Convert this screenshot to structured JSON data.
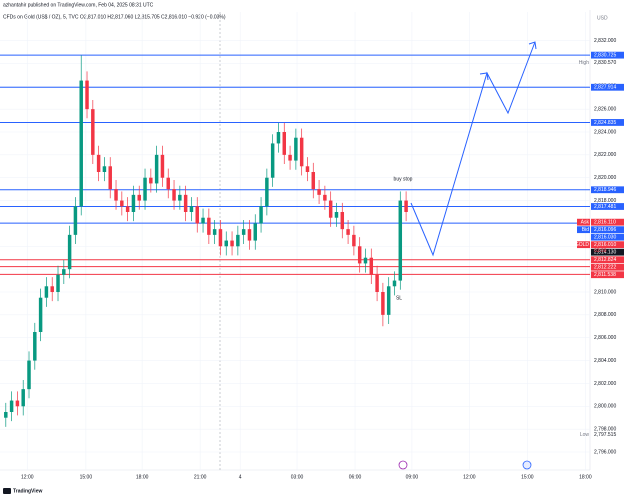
{
  "chart_data": {
    "type": "candlestick",
    "header": "azhantahir published on TradingView.com, Feb 04, 2025 08:31 UTC",
    "symbol_line": "CFDs on Gold (US$ / OZ), 5, TVC  O2,817.010  H2,817.060  L2,815.705  C2,816.010  −0.920 (−0.03%)",
    "currency": "USD",
    "watermark": "TradingView",
    "up_color": "#089981",
    "down_color": "#f23645",
    "x": [
      1,
      2,
      3,
      4,
      5,
      6,
      7,
      8,
      9,
      10,
      11,
      12,
      13,
      14,
      15,
      16,
      17,
      18,
      19,
      20,
      21,
      22,
      23,
      24,
      25,
      26,
      27,
      28,
      29,
      30,
      31,
      32,
      33,
      34,
      35,
      36,
      37,
      38,
      39,
      40,
      41,
      42,
      43,
      44,
      45,
      46,
      47,
      48,
      49,
      50,
      51,
      52,
      53,
      54,
      55,
      56,
      57,
      58,
      59,
      60,
      61,
      62,
      63,
      64,
      65,
      66,
      67,
      68,
      69,
      70
    ],
    "open": [
      2799,
      2799.5,
      2800.5,
      2800,
      2801.5,
      2804,
      2806.5,
      2809.5,
      2810.5,
      2810,
      2811.5,
      2812,
      2815,
      2817.5,
      2828.5,
      2826,
      2822,
      2820.5,
      2821,
      2819,
      2818,
      2817.5,
      2817,
      2818.5,
      2818,
      2820,
      2819.5,
      2822,
      2820,
      2819,
      2818,
      2818.5,
      2817,
      2817.5,
      2816,
      2816.5,
      2815,
      2815.5,
      2814,
      2814.5,
      2814,
      2815,
      2815.5,
      2814.5,
      2816,
      2817.5,
      2820,
      2823,
      2824,
      2822,
      2821.5,
      2823.5,
      2821,
      2820.5,
      2819,
      2818.5,
      2818,
      2816.5,
      2817,
      2815.5,
      2815,
      2814,
      2812.5,
      2813,
      2811.5,
      2810,
      2808,
      2810.5,
      2811,
      2818
    ],
    "high": [
      2800.3,
      2801.3,
      2801.3,
      2802.3,
      2804.8,
      2807.3,
      2810.3,
      2811.3,
      2811.3,
      2812.3,
      2812.8,
      2815.8,
      2818.3,
      2830.7,
      2829.3,
      2826.8,
      2822.8,
      2821.8,
      2821.8,
      2819.8,
      2818.8,
      2818.3,
      2819.3,
      2819.3,
      2820.8,
      2820.8,
      2822.8,
      2822.8,
      2820.8,
      2819.8,
      2819.3,
      2819.3,
      2818.3,
      2818.3,
      2817.3,
      2817.3,
      2816.3,
      2816.3,
      2815.3,
      2815.3,
      2815.8,
      2816.3,
      2816.3,
      2816.8,
      2818.3,
      2820.8,
      2823.8,
      2824.8,
      2824.8,
      2822.8,
      2824.3,
      2824.3,
      2821.8,
      2821.3,
      2819.8,
      2819.3,
      2818.8,
      2817.8,
      2817.8,
      2816.3,
      2815.8,
      2814.8,
      2813.8,
      2813.8,
      2812.3,
      2810.8,
      2811.3,
      2811.8,
      2818.8,
      2818.8
    ],
    "low": [
      2798.2,
      2798.7,
      2799.2,
      2799.2,
      2800.7,
      2803.2,
      2805.7,
      2808.7,
      2809.2,
      2809.2,
      2810.7,
      2811.2,
      2814.2,
      2816.7,
      2825.2,
      2821.2,
      2819.7,
      2819.7,
      2818.2,
      2817.2,
      2816.7,
      2816.2,
      2816.2,
      2817.2,
      2817.2,
      2818.7,
      2818.7,
      2819.2,
      2818.2,
      2817.2,
      2817.2,
      2816.2,
      2816.2,
      2815.2,
      2815.2,
      2814.2,
      2814.2,
      2813.2,
      2813.2,
      2813.2,
      2813.2,
      2814.2,
      2813.7,
      2813.7,
      2815.2,
      2816.7,
      2819.2,
      2822.2,
      2821.2,
      2820.7,
      2820.7,
      2820.2,
      2819.7,
      2818.2,
      2817.7,
      2817.2,
      2815.7,
      2815.7,
      2814.7,
      2814.2,
      2813.2,
      2811.7,
      2811.7,
      2810.7,
      2809.2,
      2807,
      2807.2,
      2809.7,
      2810.2,
      2816.2
    ],
    "close": [
      2799.5,
      2800.5,
      2800,
      2801.5,
      2804,
      2806.5,
      2809.5,
      2810.5,
      2810,
      2811.5,
      2812,
      2815,
      2817.5,
      2828.5,
      2826,
      2822,
      2820.5,
      2821,
      2819,
      2818,
      2817.5,
      2817,
      2818.5,
      2818,
      2820,
      2819.5,
      2822,
      2820,
      2819,
      2818,
      2818.5,
      2817,
      2817.5,
      2816,
      2816.5,
      2815,
      2815.5,
      2814,
      2814.5,
      2814,
      2815,
      2815.5,
      2814.5,
      2816,
      2817.5,
      2820,
      2823,
      2824,
      2822,
      2821.5,
      2823.5,
      2821,
      2820.5,
      2819,
      2818.5,
      2818,
      2816.5,
      2817,
      2815.5,
      2815,
      2814,
      2812.5,
      2813,
      2811.5,
      2810,
      2808,
      2810.5,
      2811,
      2818,
      2817
    ],
    "xlim": [
      0,
      101.7
    ],
    "xticks": [
      {
        "value": 4.7,
        "label": "12:00"
      },
      {
        "value": 14.8,
        "label": "15:00"
      },
      {
        "value": 24.5,
        "label": "18:00"
      },
      {
        "value": 34.5,
        "label": "21:00"
      },
      {
        "value": 41.4,
        "label": "4"
      },
      {
        "value": 51.2,
        "label": "03:00"
      },
      {
        "value": 61.2,
        "label": "06:00"
      },
      {
        "value": 71,
        "label": "09:00"
      },
      {
        "value": 80.9,
        "label": "12:00"
      },
      {
        "value": 90.9,
        "label": "15:00"
      },
      {
        "value": 100.9,
        "label": "18:00"
      }
    ],
    "ylim": [
      2795.3,
      2834.5
    ],
    "yticks": [
      {
        "value": 2796,
        "label": "2,796.000"
      },
      {
        "value": 2798,
        "label": "2,798.000"
      },
      {
        "value": 2800,
        "label": "2,800.000"
      },
      {
        "value": 2802,
        "label": "2,802.000"
      },
      {
        "value": 2804,
        "label": "2,804.000"
      },
      {
        "value": 2806,
        "label": "2,806.000"
      },
      {
        "value": 2808,
        "label": "2,808.000"
      },
      {
        "value": 2810,
        "label": "2,810.000"
      },
      {
        "value": 2812,
        "label": "2,812.000"
      },
      {
        "value": 2814,
        "label": "2,814.000"
      },
      {
        "value": 2816,
        "label": "2,816.000"
      },
      {
        "value": 2818,
        "label": "2,818.000"
      },
      {
        "value": 2820,
        "label": "2,820.000"
      },
      {
        "value": 2822,
        "label": "2,822.000"
      },
      {
        "value": 2824,
        "label": "2,824.000"
      },
      {
        "value": 2826,
        "label": "2,826.000"
      },
      {
        "value": 2828,
        "label": "2,828.000"
      },
      {
        "value": 2830,
        "label": "2,830.000"
      },
      {
        "value": 2832,
        "label": "2,832.000"
      }
    ],
    "grid": true,
    "levels": [
      {
        "value": 2830.725,
        "label": "2,830.725",
        "color": "#2962ff"
      },
      {
        "value": 2827.914,
        "label": "2,827.914",
        "color": "#2962ff"
      },
      {
        "value": 2824.835,
        "label": "2,824.835",
        "color": "#2962ff"
      },
      {
        "value": 2818.946,
        "label": "2,818.946",
        "color": "#2962ff"
      },
      {
        "value": 2817.481,
        "label": "2,817.481",
        "color": "#2962ff"
      },
      {
        "value": 2816.03,
        "label": "2,816.030",
        "color": "#2962ff"
      },
      {
        "value": 2812.824,
        "label": "2,812.824",
        "color": "#f23645"
      },
      {
        "value": 2812.222,
        "label": "2,812.222",
        "color": "#f23645"
      },
      {
        "value": 2811.538,
        "label": "2,811.538",
        "color": "#f23645"
      }
    ],
    "markers": [
      {
        "name": "High",
        "value": 2830.57,
        "label": "2,830.570",
        "color": "#ffffff"
      },
      {
        "name": "Ask",
        "value": 2816.11,
        "label": "2,816.110",
        "color": "#f23645"
      },
      {
        "name": "Bid",
        "value": 2816.096,
        "label": "2,816.096",
        "color": "#2962ff"
      },
      {
        "name": "GOLD",
        "value": 2816.01,
        "label": "2,816.010",
        "color": "#f23645"
      },
      {
        "name": "Low",
        "value": 2797.515,
        "label": "2,797.515",
        "color": "#ffffff"
      }
    ],
    "crosshair": {
      "value": 2814.13,
      "label": "2,814.130"
    },
    "countdown": "03:09",
    "annotations": [
      "buy stop",
      "SL"
    ]
  }
}
